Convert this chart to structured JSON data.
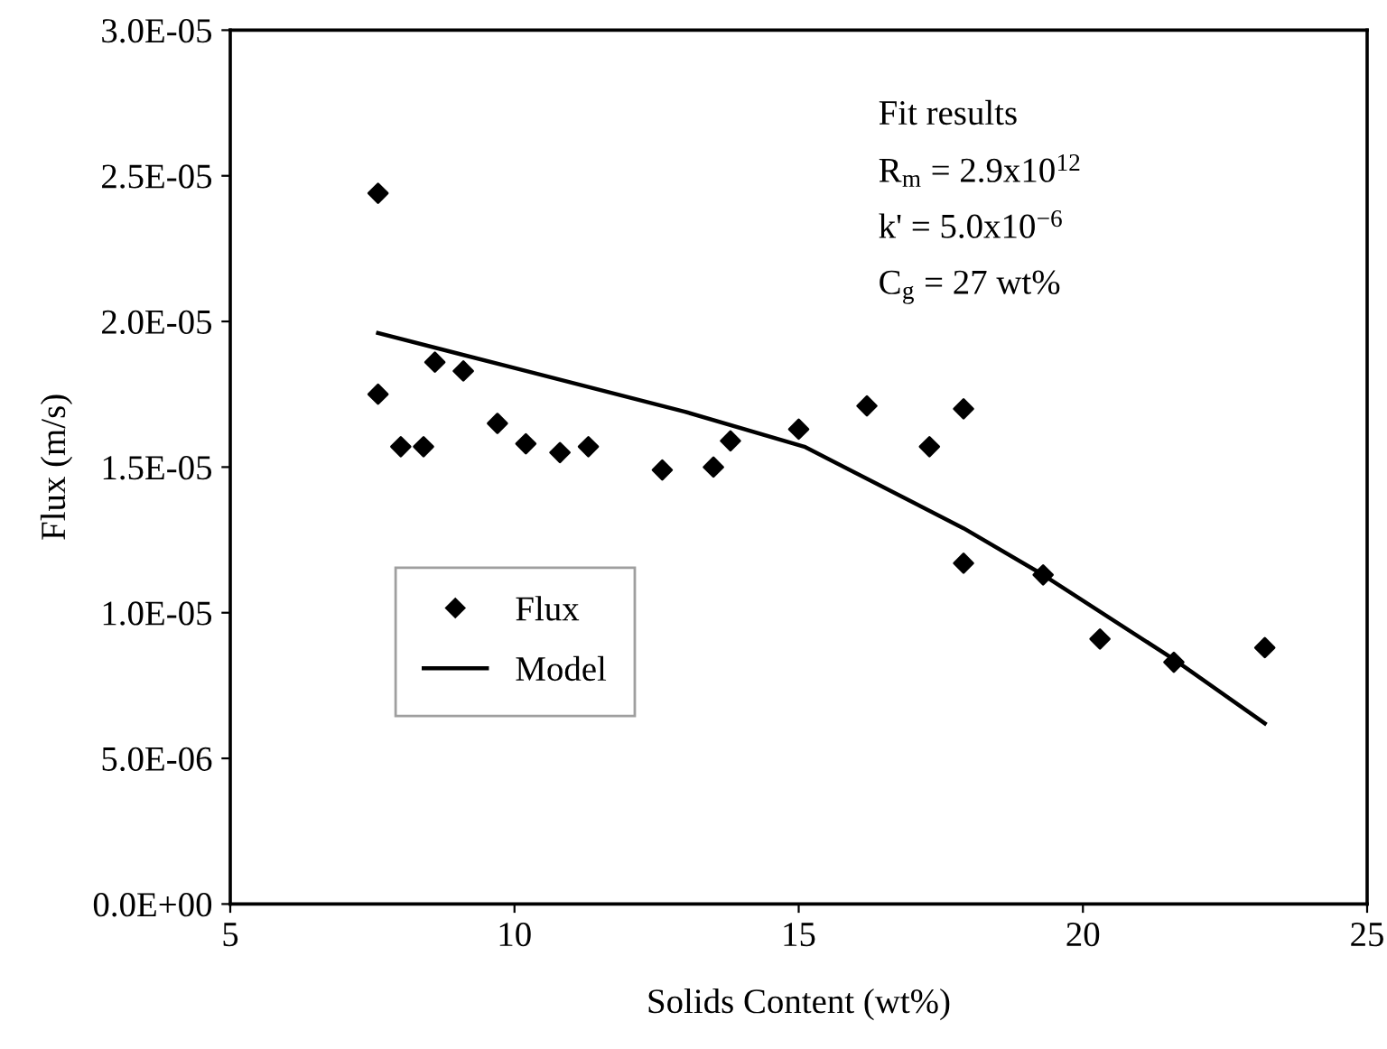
{
  "chart_data": {
    "type": "scatter",
    "xlabel": "Solids Content (wt%)",
    "ylabel": "Flux (m/s)",
    "xlim": [
      5,
      25
    ],
    "xticks": [
      5,
      10,
      15,
      20,
      25
    ],
    "ylim": [
      0,
      3e-05
    ],
    "yticks": [
      {
        "value": 0,
        "label": "0.0E+00"
      },
      {
        "value": 5e-06,
        "label": "5.0E-06"
      },
      {
        "value": 1e-05,
        "label": "1.0E-05"
      },
      {
        "value": 1.5e-05,
        "label": "1.5E-05"
      },
      {
        "value": 2e-05,
        "label": "2.0E-05"
      },
      {
        "value": 2.5e-05,
        "label": "2.5E-05"
      },
      {
        "value": 3e-05,
        "label": "3.0E-05"
      }
    ],
    "grid": false,
    "legend": "left",
    "series": [
      {
        "name": "Flux",
        "marker": "diamond",
        "color": "#000000",
        "x": [
          7.6,
          7.6,
          8.0,
          8.4,
          8.6,
          9.1,
          9.7,
          10.2,
          10.8,
          11.3,
          12.6,
          13.5,
          13.8,
          15.0,
          16.2,
          17.3,
          17.9,
          17.9,
          19.3,
          20.3,
          21.6,
          23.2
        ],
        "values": [
          2.44e-05,
          1.75e-05,
          1.57e-05,
          1.57e-05,
          1.86e-05,
          1.83e-05,
          1.65e-05,
          1.58e-05,
          1.55e-05,
          1.57e-05,
          1.49e-05,
          1.5e-05,
          1.59e-05,
          1.63e-05,
          1.71e-05,
          1.57e-05,
          1.7e-05,
          1.17e-05,
          1.13e-05,
          9.1e-06,
          8.3e-06,
          8.8e-06
        ]
      },
      {
        "name": "Model",
        "type": "line",
        "marker": "none",
        "line_style": "solid",
        "color": "#000000",
        "x": [
          7.6,
          10.0,
          13.0,
          15.1,
          17.9,
          19.3,
          21.6,
          23.2
        ],
        "values": [
          1.96e-05,
          1.84e-05,
          1.69e-05,
          1.57e-05,
          1.29e-05,
          1.13e-05,
          8.4e-06,
          6.2e-06
        ]
      }
    ],
    "annotations": [
      "Fit results",
      "R$_{m}$ = 2.9x10$^{12}$",
      "k' = 5.0x10$^{−6}$",
      "C$_{g}$ = 27 wt%"
    ]
  }
}
